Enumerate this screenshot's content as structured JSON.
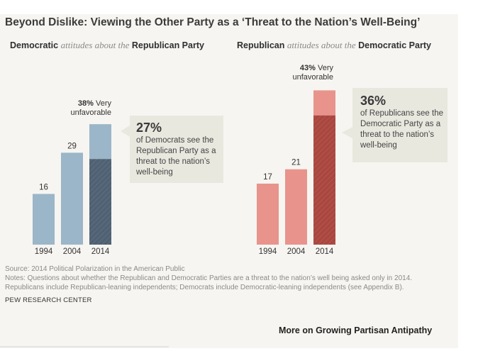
{
  "title": "Beyond Dislike: Viewing the Other Party as a ‘Threat to the Nation’s Well-Being’",
  "panels": {
    "left": {
      "subject": "Democratic",
      "middle": "attitudes about the",
      "object": "Republican Party",
      "very_unfavorable_pct": "38%",
      "very_unfavorable_word": "Very",
      "very_unfavorable_label": "unfavorable",
      "callout_pct": "27%",
      "callout_text": "of Democrats see the Republican Party as a threat to the nation’s well-being"
    },
    "right": {
      "subject": "Republican",
      "middle": "attitudes about the",
      "object": "Democratic Party",
      "very_unfavorable_pct": "43%",
      "very_unfavorable_word": "Very",
      "very_unfavorable_label": "unfavorable",
      "callout_pct": "36%",
      "callout_text": "of Republicans see the Democratic Party as a threat to the nation’s well-being"
    }
  },
  "colors": {
    "dem_light": "#9bb6c8",
    "dem_dark": "#4f6172",
    "rep_light": "#e8948c",
    "rep_dark": "#a8473f",
    "callout_bg": "#e9e8df"
  },
  "chart_data": [
    {
      "type": "bar",
      "panel": "left",
      "title": "Democratic attitudes about the Republican Party",
      "categories": [
        "1994",
        "2004",
        "2014"
      ],
      "series": [
        {
          "name": "Very unfavorable",
          "values": [
            16,
            29,
            38
          ]
        },
        {
          "name": "Threat to the nation's well-being",
          "values": [
            null,
            null,
            27
          ]
        }
      ],
      "data_labels": [
        "16",
        "29",
        ""
      ],
      "ylim": [
        0,
        45
      ]
    },
    {
      "type": "bar",
      "panel": "right",
      "title": "Republican attitudes about the Democratic Party",
      "categories": [
        "1994",
        "2004",
        "2014"
      ],
      "series": [
        {
          "name": "Very unfavorable",
          "values": [
            17,
            21,
            43
          ]
        },
        {
          "name": "Threat to the nation's well-being",
          "values": [
            null,
            null,
            36
          ]
        }
      ],
      "data_labels": [
        "17",
        "21",
        ""
      ],
      "ylim": [
        0,
        45
      ]
    }
  ],
  "source": "Source: 2014 Political Polarization in the American Public",
  "notes_line1": "Notes: Questions about whether the Republican and Democratic Parties are a threat to the nation’s well being asked only in 2014.",
  "notes_line2": "Republicans include Republican-leaning independents; Democrats include Democratic-leaning independents (see Appendix B).",
  "credit": "PEW RESEARCH CENTER",
  "more_link": "More on Growing Partisan Antipathy"
}
